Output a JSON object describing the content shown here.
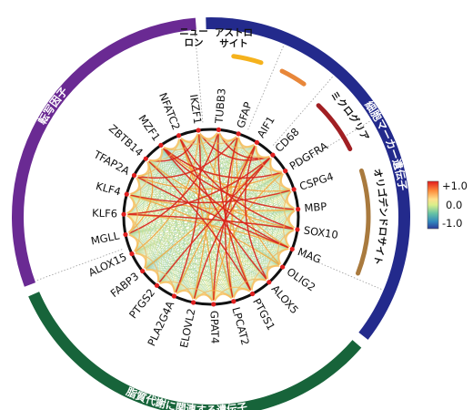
{
  "groups": [
    {
      "name": "transcription-factors",
      "label": "転写因子",
      "color": "#6a2a93"
    },
    {
      "name": "cell-marker-genes",
      "label": "細胞マーカー遺伝子",
      "color": "#232a8c"
    },
    {
      "name": "lipid-metabolism-genes",
      "label": "脂質代謝に関連する遺伝子",
      "color": "#17643a"
    }
  ],
  "subgroups": [
    {
      "name": "neuron",
      "lines": [
        "ニュー",
        "ロン"
      ],
      "color": "#f5b21c"
    },
    {
      "name": "astrocyte",
      "lines": [
        "アストロ",
        "サイト"
      ],
      "color": "#e8873a"
    },
    {
      "name": "microglia",
      "lines": [
        "ミクログリア"
      ],
      "color": "#a11f23"
    },
    {
      "name": "oligodendrocyte",
      "lines": [
        "オリゴデンドロサイト"
      ],
      "color": "#a97a3e"
    }
  ],
  "genes": [
    "TUBB3",
    "GFAP",
    "AIF1",
    "CD68",
    "PDGFRA",
    "CSPG4",
    "MBP",
    "SOX10",
    "MAG",
    "OLIG2",
    "ALOX5",
    "PTGS1",
    "LPCAT2",
    "GPAT4",
    "ELOVL2",
    "PLA2G4A",
    "PTGS2",
    "FABP3",
    "ALOX15",
    "MGLL",
    "KLF6",
    "KLF4",
    "TFAP2A",
    "ZBTB14",
    "MZF1",
    "NFATC2",
    "IKZF1"
  ],
  "colorbar": {
    "ticks": [
      "+1.0",
      "0.0",
      "-1.0"
    ],
    "colors": [
      "#e31a1c",
      "#fd8d3c",
      "#fee08b",
      "#d9ef8b",
      "#66c2a5",
      "#3288bd",
      "#2b3a99"
    ]
  }
}
